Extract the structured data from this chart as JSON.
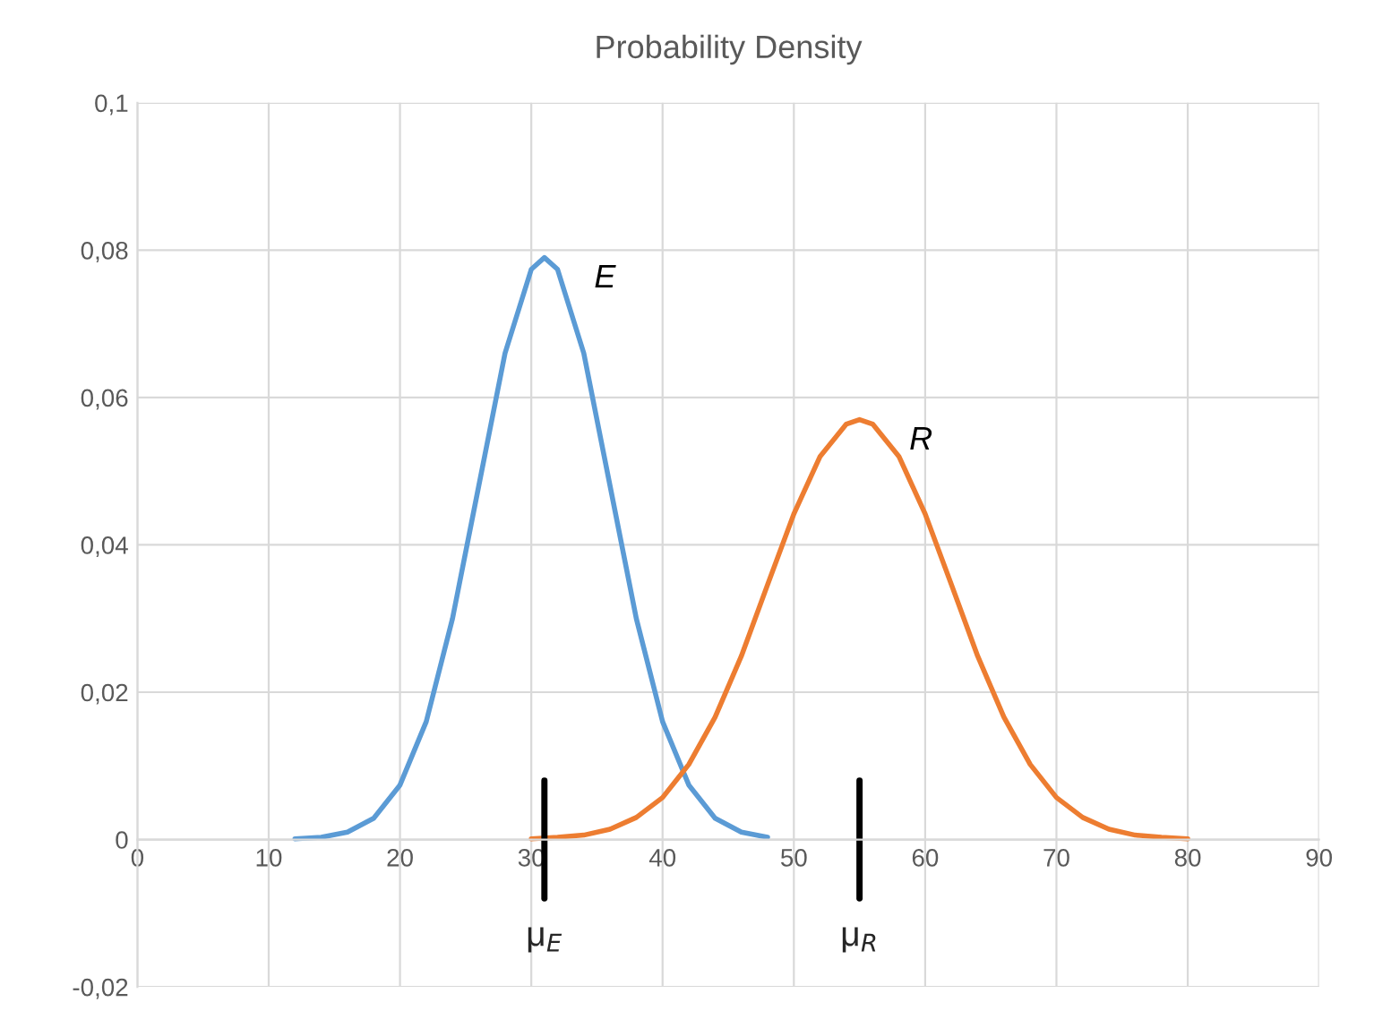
{
  "chart_data": {
    "type": "line",
    "title": "Probability Density",
    "series": [
      {
        "name": "E",
        "color": "#5b9bd5",
        "x": [
          12,
          14,
          16,
          18,
          20,
          22,
          24,
          26,
          28,
          30,
          31,
          32,
          34,
          36,
          38,
          40,
          42,
          44,
          46,
          48
        ],
        "values": [
          0.0001,
          0.0003,
          0.001,
          0.0029,
          0.0074,
          0.016,
          0.03,
          0.048,
          0.066,
          0.0774,
          0.079,
          0.0774,
          0.066,
          0.048,
          0.03,
          0.016,
          0.0074,
          0.0029,
          0.001,
          0.0003
        ]
      },
      {
        "name": "R",
        "color": "#ed7d31",
        "x": [
          30,
          32,
          34,
          36,
          38,
          40,
          42,
          44,
          46,
          48,
          50,
          52,
          54,
          55,
          56,
          58,
          60,
          62,
          64,
          66,
          68,
          70,
          72,
          74,
          76,
          78,
          80
        ],
        "values": [
          0.0001,
          0.0003,
          0.0006,
          0.0014,
          0.003,
          0.0057,
          0.0102,
          0.0166,
          0.0249,
          0.0346,
          0.0442,
          0.052,
          0.0564,
          0.057,
          0.0564,
          0.052,
          0.0442,
          0.0346,
          0.0249,
          0.0166,
          0.0102,
          0.0057,
          0.003,
          0.0014,
          0.0006,
          0.0003,
          0.0001
        ]
      }
    ],
    "ref_lines": [
      {
        "axis": "x",
        "value": 31,
        "label": "μ$_{E}$",
        "color": "#000000"
      },
      {
        "axis": "x",
        "value": 55,
        "label": "μ$_{R}$",
        "color": "#000000"
      }
    ],
    "xlim": [
      0,
      90
    ],
    "xticks": [
      0,
      10,
      20,
      30,
      40,
      50,
      60,
      70,
      80,
      90
    ],
    "ylim": [
      -0.02,
      0.1
    ],
    "yticks": [
      {
        "value": -0.02,
        "label": "-0,02"
      },
      0,
      {
        "value": 0.02,
        "label": "0,02"
      },
      {
        "value": 0.04,
        "label": "0,04"
      },
      {
        "value": 0.06,
        "label": "0,06"
      },
      {
        "value": 0.08,
        "label": "0,08"
      },
      {
        "value": 0.1,
        "label": "0,1"
      }
    ],
    "grid": true,
    "legend": false,
    "marker": "none",
    "line_style": "solid"
  }
}
